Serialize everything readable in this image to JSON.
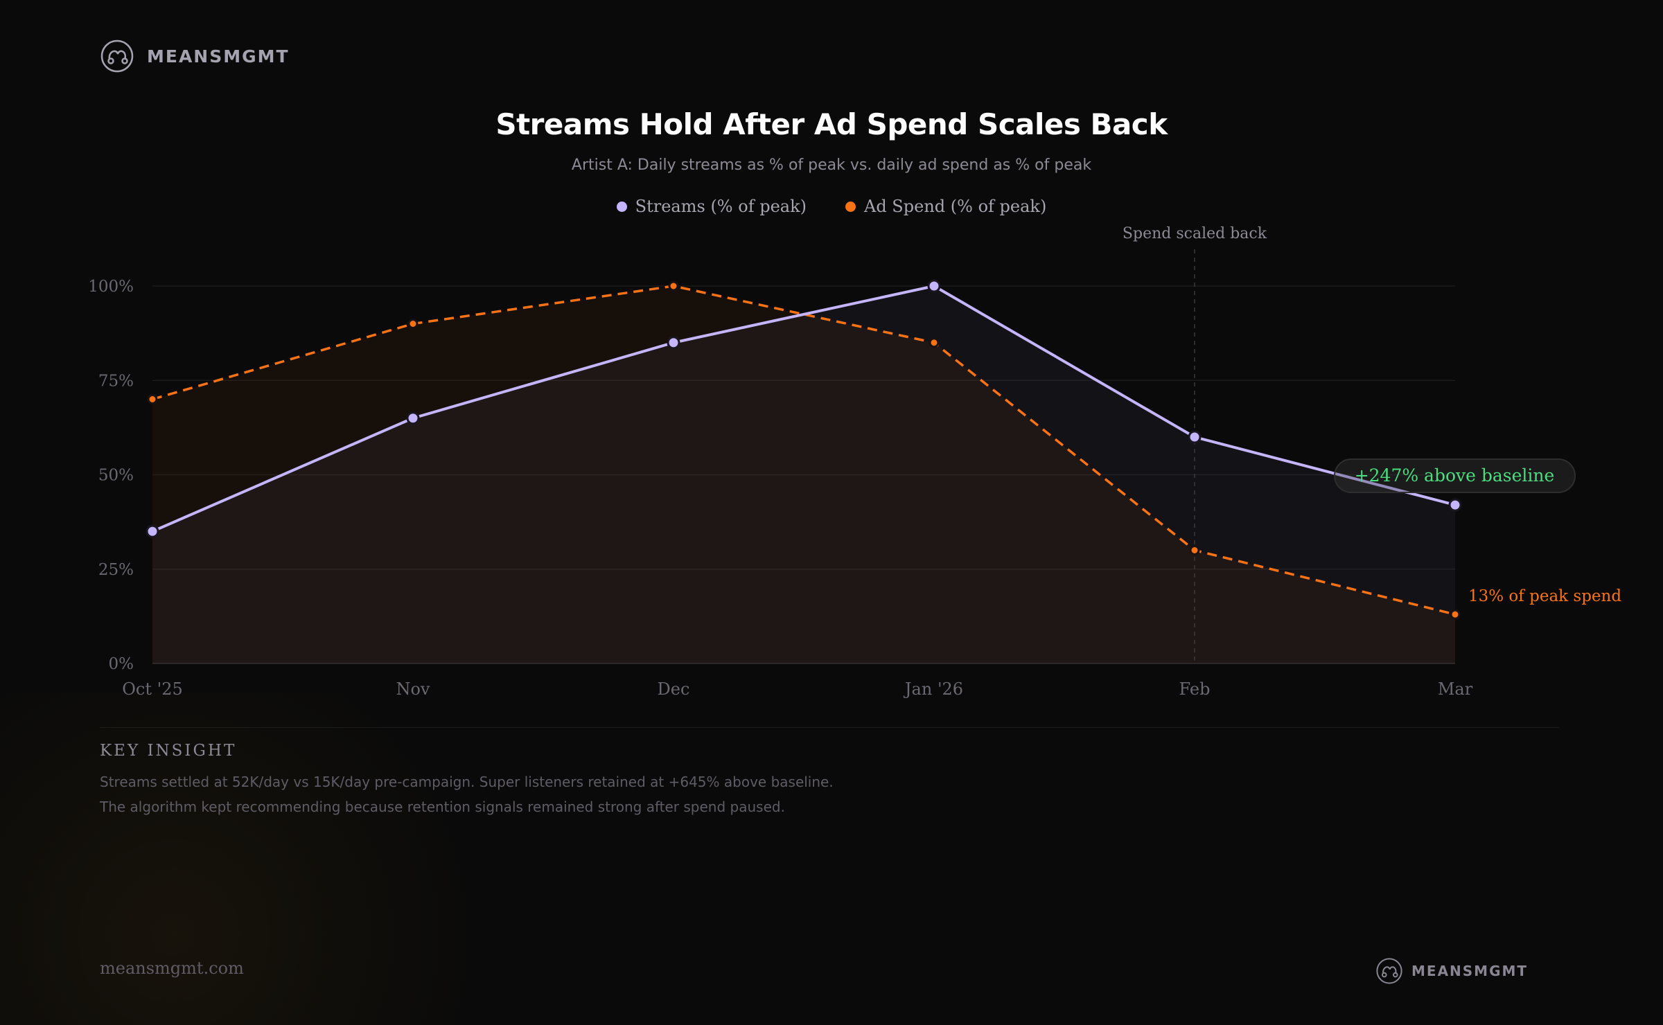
{
  "brand": {
    "name": "MEANSMGMT",
    "url": "meansmgmt.com"
  },
  "colors": {
    "streams": "#c4b5fd",
    "spend": "#f97316",
    "annotation_green": "#4ade80",
    "background": "#0a0a0a"
  },
  "chart_data": {
    "type": "line",
    "title": "Streams Hold After Ad Spend Scales Back",
    "subtitle": "Artist A: Daily streams as % of peak vs. daily ad spend as % of peak",
    "categories": [
      "Oct '25",
      "Nov",
      "Dec",
      "Jan '26",
      "Feb",
      "Mar"
    ],
    "series": [
      {
        "name": "Streams (% of peak)",
        "values": [
          35,
          65,
          85,
          100,
          60,
          42
        ],
        "style": "solid",
        "color": "#c4b5fd"
      },
      {
        "name": "Ad Spend (% of peak)",
        "values": [
          70,
          90,
          100,
          85,
          30,
          13
        ],
        "style": "dashed",
        "color": "#f97316"
      }
    ],
    "ylim": [
      0,
      100
    ],
    "yticks": [
      "0%",
      "25%",
      "50%",
      "75%",
      "100%"
    ],
    "grid": true,
    "legend": "top",
    "annotations": {
      "vline": {
        "at": "Feb",
        "label": "Spend scaled back"
      },
      "streams_end": "+247% above baseline",
      "spend_end": "13% of peak spend"
    }
  },
  "insight": {
    "label": "KEY INSIGHT",
    "lines": [
      "Streams settled at 52K/day vs 15K/day pre-campaign. Super listeners retained at +645% above baseline.",
      "The algorithm kept recommending because retention signals remained strong after spend paused."
    ]
  }
}
